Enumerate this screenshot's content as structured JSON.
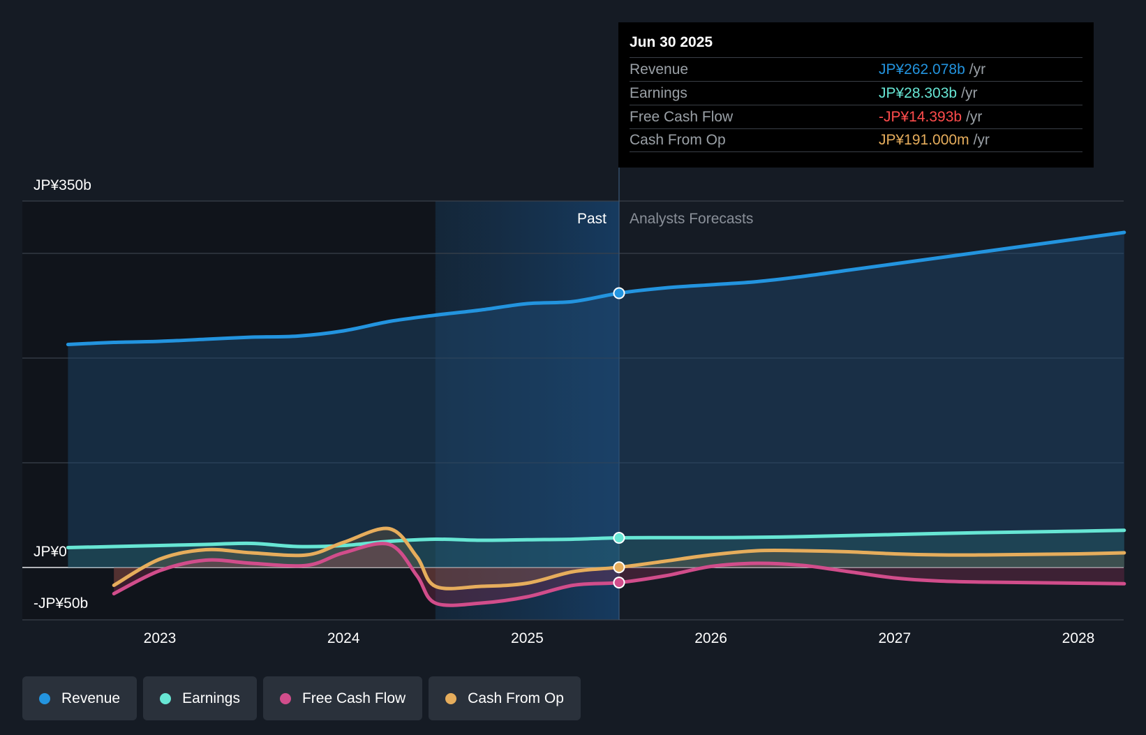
{
  "colors": {
    "background": "#151b24",
    "revenue": "#2394df",
    "earnings": "#67e6d4",
    "free_cash_flow": "#d14d8b",
    "cash_from_op": "#e6ad5c",
    "negative": "#ff4c4c"
  },
  "tooltip": {
    "date": "Jun 30 2025",
    "rows": [
      {
        "label": "Revenue",
        "value": "JP¥262.078b",
        "unit": "/yr",
        "color": "#2394df"
      },
      {
        "label": "Earnings",
        "value": "JP¥28.303b",
        "unit": "/yr",
        "color": "#67e6d4"
      },
      {
        "label": "Free Cash Flow",
        "value": "-JP¥14.393b",
        "unit": "/yr",
        "color": "#ff4c4c"
      },
      {
        "label": "Cash From Op",
        "value": "JP¥191.000m",
        "unit": "/yr",
        "color": "#e6ad5c"
      }
    ]
  },
  "legend": [
    {
      "label": "Revenue",
      "color": "#2394df"
    },
    {
      "label": "Earnings",
      "color": "#67e6d4"
    },
    {
      "label": "Free Cash Flow",
      "color": "#d14d8b"
    },
    {
      "label": "Cash From Op",
      "color": "#e6ad5c"
    }
  ],
  "chart_data": {
    "type": "line",
    "title": "",
    "xlabel": "",
    "ylabel": "",
    "y_tick_labels": [
      {
        "value": 350,
        "label": "JP¥350b"
      },
      {
        "value": 0,
        "label": "JP¥0"
      },
      {
        "value": -50,
        "label": "-JP¥50b"
      }
    ],
    "ylim": [
      -50,
      350
    ],
    "xlim": [
      2022.45,
      2028.25
    ],
    "x_ticks": [
      2023,
      2024,
      2025,
      2026,
      2027,
      2028
    ],
    "x_tick_labels": [
      "2023",
      "2024",
      "2025",
      "2026",
      "2027",
      "2028"
    ],
    "gridlines_y": [
      350,
      300,
      200,
      100,
      0
    ],
    "divider_x": 2025.5,
    "highlight_start_x": 2024.5,
    "past_label": "Past",
    "forecast_label": "Analysts Forecasts",
    "series": [
      {
        "name": "Revenue",
        "key": "revenue",
        "x": [
          2022.5,
          2022.75,
          2023.0,
          2023.25,
          2023.5,
          2023.75,
          2024.0,
          2024.25,
          2024.5,
          2024.75,
          2025.0,
          2025.25,
          2025.5,
          2025.75,
          2026.0,
          2026.25,
          2026.5,
          2026.75,
          2027.0,
          2027.25,
          2027.5,
          2027.75,
          2028.0,
          2028.25
        ],
        "values": [
          213,
          215,
          216,
          218,
          220,
          221,
          226,
          235,
          241,
          246,
          252,
          254,
          262,
          267,
          270,
          273,
          278,
          284,
          290,
          296,
          302,
          308,
          314,
          320
        ]
      },
      {
        "name": "Earnings",
        "key": "earnings",
        "x": [
          2022.5,
          2022.75,
          2023.0,
          2023.25,
          2023.5,
          2023.75,
          2024.0,
          2024.25,
          2024.5,
          2024.75,
          2025.0,
          2025.25,
          2025.5,
          2025.75,
          2026.0,
          2026.25,
          2026.5,
          2026.75,
          2027.0,
          2027.25,
          2027.5,
          2027.75,
          2028.0,
          2028.25
        ],
        "values": [
          19,
          20,
          21,
          22,
          23,
          20,
          21,
          25,
          27,
          26,
          26.5,
          27,
          28.3,
          28.5,
          28.5,
          28.8,
          29.5,
          30.5,
          31.5,
          32.5,
          33.3,
          34,
          34.7,
          35.5
        ]
      },
      {
        "name": "Free Cash Flow",
        "key": "free_cash_flow",
        "x": [
          2022.75,
          2023.0,
          2023.25,
          2023.5,
          2023.8,
          2024.0,
          2024.25,
          2024.4,
          2024.5,
          2024.75,
          2025.0,
          2025.25,
          2025.5,
          2025.75,
          2026.0,
          2026.25,
          2026.5,
          2026.75,
          2027.0,
          2027.25,
          2027.5,
          2027.75,
          2028.0,
          2028.25
        ],
        "values": [
          -25,
          -3,
          7,
          4,
          2,
          14,
          22,
          -8,
          -34,
          -34,
          -28,
          -17,
          -14.393,
          -8,
          1,
          4,
          2,
          -4,
          -10,
          -13,
          -14,
          -14.5,
          -15,
          -15.5
        ]
      },
      {
        "name": "Cash From Op",
        "key": "cash_from_op",
        "x": [
          2022.75,
          2023.0,
          2023.25,
          2023.5,
          2023.8,
          2024.0,
          2024.25,
          2024.4,
          2024.5,
          2024.75,
          2025.0,
          2025.25,
          2025.5,
          2025.75,
          2026.0,
          2026.25,
          2026.5,
          2026.75,
          2027.0,
          2027.25,
          2027.5,
          2027.75,
          2028.0,
          2028.25
        ],
        "values": [
          -17,
          8,
          17,
          14,
          12,
          24,
          37,
          10,
          -18,
          -18,
          -15,
          -4,
          0.191,
          6,
          12,
          16,
          16,
          15,
          13,
          12,
          12,
          12.5,
          13,
          14
        ]
      }
    ]
  }
}
